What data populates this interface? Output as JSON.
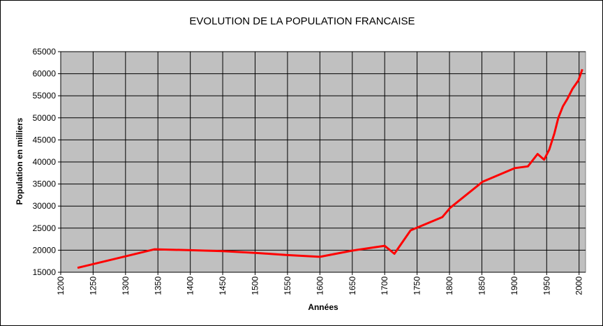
{
  "chart_data": {
    "type": "line",
    "title": "EVOLUTION DE LA POPULATION FRANCAISE",
    "xlabel": "Années",
    "ylabel": "Population en milliers",
    "xlim": [
      1200,
      2010
    ],
    "ylim": [
      15000,
      65000
    ],
    "xticks": [
      1200,
      1250,
      1300,
      1350,
      1400,
      1450,
      1500,
      1550,
      1600,
      1650,
      1700,
      1750,
      1800,
      1850,
      1900,
      1950,
      2000
    ],
    "yticks": [
      15000,
      20000,
      25000,
      30000,
      35000,
      40000,
      45000,
      50000,
      55000,
      60000,
      65000
    ],
    "grid": true,
    "legend": "none",
    "plot_background": "#c0c0c0",
    "series": [
      {
        "color": "#ff0000",
        "x": [
          1226,
          1300,
          1345,
          1400,
          1450,
          1500,
          1550,
          1600,
          1650,
          1700,
          1715,
          1740,
          1789,
          1801,
          1851,
          1901,
          1921,
          1936,
          1946,
          1954,
          1962,
          1968,
          1975,
          1982,
          1990,
          1999,
          2005
        ],
        "y": [
          16000,
          18600,
          20200,
          20000,
          19800,
          19400,
          18900,
          18500,
          19900,
          21000,
          19200,
          24500,
          27500,
          29600,
          35500,
          38600,
          39000,
          41800,
          40500,
          42800,
          46500,
          50000,
          52600,
          54300,
          56600,
          58500,
          61000
        ]
      }
    ]
  }
}
